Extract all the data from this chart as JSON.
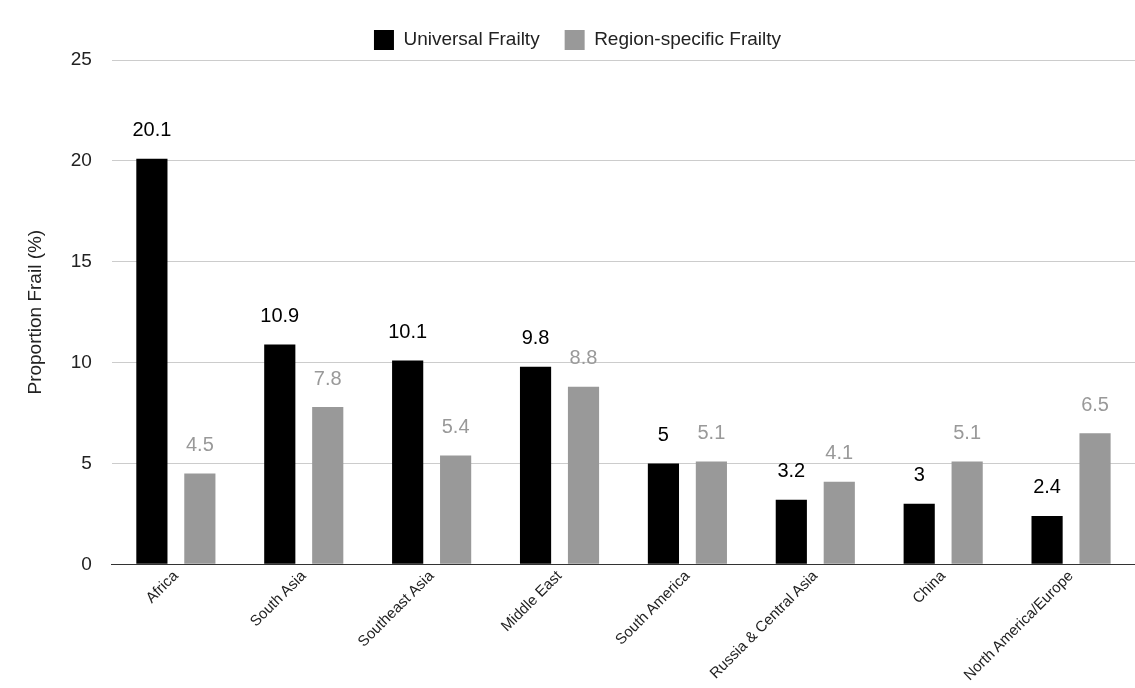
{
  "chart_data": {
    "type": "bar",
    "ylabel": "Proportion Frail (%)",
    "categories": [
      "Africa",
      "South Asia",
      "Southeast Asia",
      "Middle East",
      "South America",
      "Russia & Central Asia",
      "China",
      "North America/Europe"
    ],
    "series": [
      {
        "name": "Universal Frailty",
        "color": "#000000",
        "values": [
          20.1,
          10.9,
          10.1,
          9.8,
          5,
          3.2,
          3,
          2.4
        ]
      },
      {
        "name": "Region-specific Frailty",
        "color": "#999999",
        "values": [
          4.5,
          7.8,
          5.4,
          8.8,
          5.1,
          4.1,
          5.1,
          6.5
        ]
      }
    ],
    "ylim": [
      0,
      25
    ],
    "yticks": [
      0,
      5,
      10,
      15,
      20,
      25
    ],
    "grid": "y",
    "legend": "top",
    "data_labels": true
  }
}
